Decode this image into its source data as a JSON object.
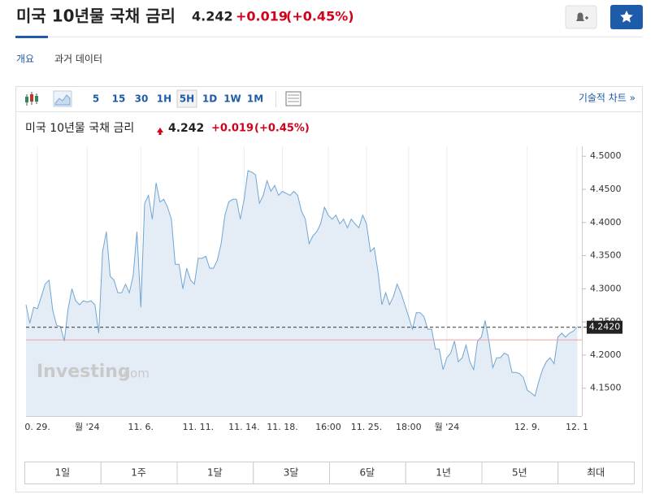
{
  "header": {
    "title": "미국 10년물 국채 금리",
    "price": "4.242",
    "change": "+0.019",
    "change_pct": "(+0.45%)"
  },
  "tabs": [
    "개요",
    "과거 데이터"
  ],
  "toolbar": {
    "intervals": [
      "5",
      "15",
      "30",
      "1H",
      "5H",
      "1D",
      "1W",
      "1M"
    ],
    "selected": 4,
    "technical_chart": "기술적 차트 »"
  },
  "chart_data": {
    "type": "line",
    "title": "미국 10년물 국채 금리",
    "price": "4.242",
    "change": "+0.019",
    "change_pct": "(+0.45%)",
    "watermark": "Investing",
    "watermark_suffix": ".com",
    "categories": [
      null,
      null,
      null,
      "0. 29.",
      null,
      null,
      null,
      null,
      null,
      null,
      null,
      null,
      null,
      null,
      null,
      null,
      "월 '24",
      null,
      null,
      null,
      null,
      null,
      null,
      null,
      null,
      null,
      null,
      null,
      null,
      null,
      "11. 6.",
      null,
      null,
      null,
      null,
      null,
      null,
      null,
      null,
      null,
      null,
      null,
      null,
      null,
      null,
      "11. 11.",
      null,
      null,
      null,
      null,
      null,
      null,
      null,
      null,
      null,
      null,
      null,
      "11. 14.",
      null,
      null,
      null,
      null,
      null,
      null,
      null,
      null,
      null,
      "11. 18.",
      null,
      null,
      null,
      null,
      null,
      null,
      null,
      null,
      null,
      null,
      null,
      "16:00",
      null,
      null,
      null,
      null,
      null,
      null,
      null,
      null,
      null,
      "11. 25.",
      null,
      null,
      null,
      null,
      null,
      null,
      null,
      null,
      null,
      null,
      "18:00",
      null,
      null,
      null,
      null,
      null,
      null,
      null,
      null,
      null,
      "월 '24",
      null,
      null,
      null,
      null,
      null,
      null,
      null,
      null,
      null,
      null,
      null,
      null,
      null,
      null,
      null,
      null,
      null,
      null,
      null,
      null,
      "12. 9.",
      null,
      null,
      null,
      null,
      null,
      null,
      null,
      null,
      null,
      null,
      null,
      null,
      "12. 1"
    ],
    "values": [
      4.276,
      4.248,
      4.272,
      4.27,
      4.288,
      4.307,
      4.313,
      4.267,
      4.245,
      4.243,
      4.221,
      4.27,
      4.3,
      4.282,
      4.276,
      4.282,
      4.28,
      4.282,
      4.276,
      4.233,
      4.356,
      4.386,
      4.319,
      4.313,
      4.294,
      4.294,
      4.307,
      4.294,
      4.319,
      4.386,
      4.272,
      4.429,
      4.441,
      4.405,
      4.46,
      4.431,
      4.435,
      4.423,
      4.405,
      4.337,
      4.337,
      4.3,
      4.331,
      4.313,
      4.307,
      4.346,
      4.346,
      4.349,
      4.331,
      4.331,
      4.343,
      4.368,
      4.411,
      4.431,
      4.435,
      4.435,
      4.405,
      4.435,
      4.478,
      4.476,
      4.472,
      4.429,
      4.441,
      4.463,
      4.447,
      4.456,
      4.441,
      4.447,
      4.444,
      4.441,
      4.447,
      4.441,
      4.417,
      4.405,
      4.368,
      4.38,
      4.386,
      4.398,
      4.423,
      4.411,
      4.405,
      4.411,
      4.398,
      4.405,
      4.392,
      4.405,
      4.398,
      4.392,
      4.411,
      4.398,
      4.356,
      4.362,
      4.325,
      4.276,
      4.294,
      4.276,
      4.288,
      4.307,
      4.294,
      4.276,
      4.258,
      4.239,
      4.264,
      4.264,
      4.258,
      4.239,
      4.239,
      4.209,
      4.209,
      4.178,
      4.196,
      4.203,
      4.221,
      4.19,
      4.196,
      4.215,
      4.19,
      4.178,
      4.221,
      4.227,
      4.252,
      4.221,
      4.181,
      4.196,
      4.196,
      4.203,
      4.2,
      4.174,
      4.174,
      4.172,
      4.166,
      4.147,
      4.143,
      4.138,
      4.16,
      4.178,
      4.19,
      4.196,
      4.187,
      4.227,
      4.233,
      4.227,
      4.233,
      4.236,
      4.242
    ],
    "color": "#6fa6d3",
    "ylim": [
      4.108,
      4.515
    ],
    "yticks": [
      {
        "value": 4.15,
        "label": "4.1500"
      },
      {
        "value": 4.2,
        "label": "4.2000"
      },
      {
        "value": 4.25,
        "label": "4.2500"
      },
      {
        "value": 4.3,
        "label": "4.3000"
      },
      {
        "value": 4.35,
        "label": "4.3500"
      },
      {
        "value": 4.4,
        "label": "4.4000"
      },
      {
        "value": 4.45,
        "label": "4.4500"
      },
      {
        "value": 4.5,
        "label": "4.5000"
      }
    ],
    "last": {
      "value": 4.242,
      "label": "4.2420"
    },
    "previous_close": 4.223,
    "grid": true
  },
  "ranges": [
    "1일",
    "1주",
    "1달",
    "3달",
    "6달",
    "1년",
    "5년",
    "최대"
  ]
}
